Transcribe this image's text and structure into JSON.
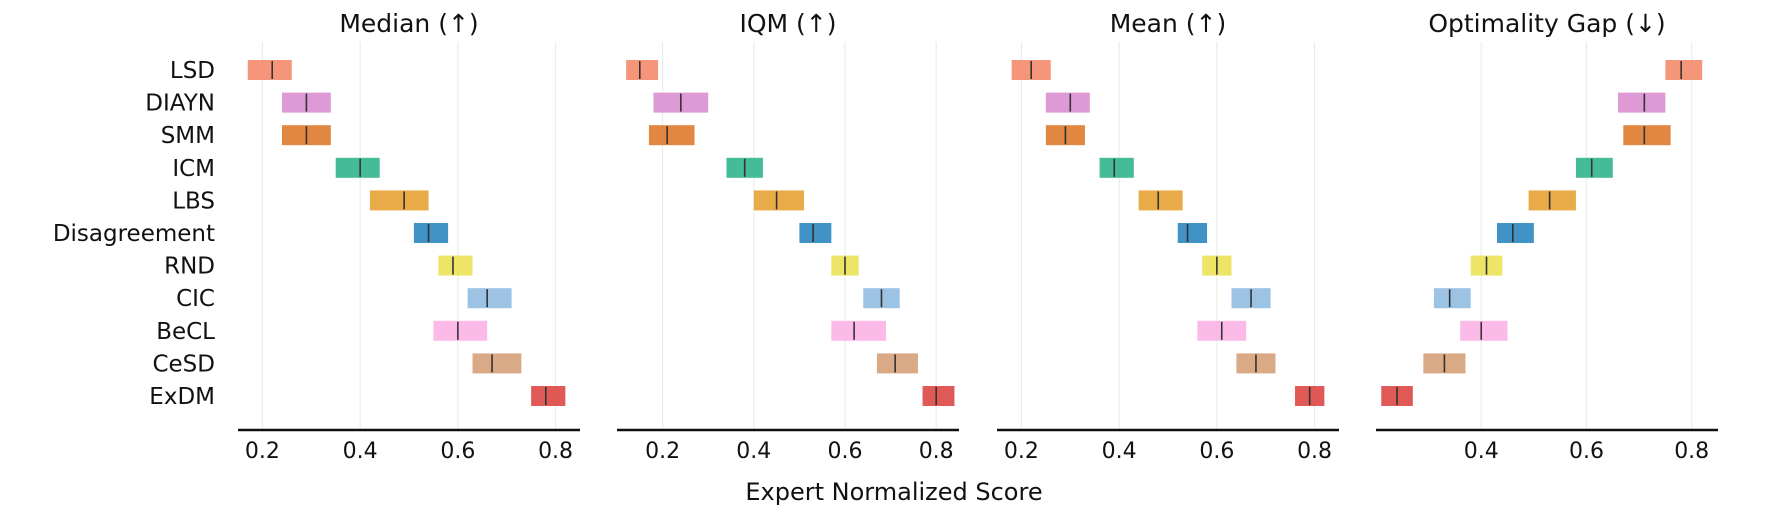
{
  "chart_data": {
    "type": "interval",
    "xlabel": "Expert Normalized Score",
    "categories": [
      "LSD",
      "DIAYN",
      "SMM",
      "ICM",
      "LBS",
      "Disagreement",
      "RND",
      "CIC",
      "BeCL",
      "CeSD",
      "ExDM"
    ],
    "colors": [
      "#f4896b",
      "#d98fcf",
      "#de7a2c",
      "#2fb58c",
      "#e5a233",
      "#2b86c1",
      "#ece155",
      "#91bde1",
      "#fbb2e6",
      "#d6a079",
      "#dc4744"
    ],
    "panels": [
      {
        "title": "Median (↑)",
        "xlim": [
          0.15,
          0.85
        ],
        "ticks": [
          0.2,
          0.4,
          0.6,
          0.8
        ],
        "tick_labels": [
          "0.2",
          "0.4",
          "0.6",
          "0.8"
        ],
        "intervals": [
          {
            "low": 0.17,
            "high": 0.26,
            "point": 0.22
          },
          {
            "low": 0.24,
            "high": 0.34,
            "point": 0.29
          },
          {
            "low": 0.24,
            "high": 0.34,
            "point": 0.29
          },
          {
            "low": 0.35,
            "high": 0.44,
            "point": 0.4
          },
          {
            "low": 0.42,
            "high": 0.54,
            "point": 0.49
          },
          {
            "low": 0.51,
            "high": 0.58,
            "point": 0.54
          },
          {
            "low": 0.56,
            "high": 0.63,
            "point": 0.59
          },
          {
            "low": 0.62,
            "high": 0.71,
            "point": 0.66
          },
          {
            "low": 0.55,
            "high": 0.66,
            "point": 0.6
          },
          {
            "low": 0.63,
            "high": 0.73,
            "point": 0.67
          },
          {
            "low": 0.75,
            "high": 0.82,
            "point": 0.78
          }
        ]
      },
      {
        "title": "IQM (↑)",
        "xlim": [
          0.1,
          0.85
        ],
        "ticks": [
          0.2,
          0.4,
          0.6,
          0.8
        ],
        "tick_labels": [
          "0.2",
          "0.4",
          "0.6",
          "0.8"
        ],
        "intervals": [
          {
            "low": 0.12,
            "high": 0.19,
            "point": 0.15
          },
          {
            "low": 0.18,
            "high": 0.3,
            "point": 0.24
          },
          {
            "low": 0.17,
            "high": 0.27,
            "point": 0.21
          },
          {
            "low": 0.34,
            "high": 0.42,
            "point": 0.38
          },
          {
            "low": 0.4,
            "high": 0.51,
            "point": 0.45
          },
          {
            "low": 0.5,
            "high": 0.57,
            "point": 0.53
          },
          {
            "low": 0.57,
            "high": 0.63,
            "point": 0.6
          },
          {
            "low": 0.64,
            "high": 0.72,
            "point": 0.68
          },
          {
            "low": 0.57,
            "high": 0.69,
            "point": 0.62
          },
          {
            "low": 0.67,
            "high": 0.76,
            "point": 0.71
          },
          {
            "low": 0.77,
            "high": 0.84,
            "point": 0.8
          }
        ]
      },
      {
        "title": "Mean (↑)",
        "xlim": [
          0.15,
          0.85
        ],
        "ticks": [
          0.2,
          0.4,
          0.6,
          0.8
        ],
        "tick_labels": [
          "0.2",
          "0.4",
          "0.6",
          "0.8"
        ],
        "intervals": [
          {
            "low": 0.18,
            "high": 0.26,
            "point": 0.22
          },
          {
            "low": 0.25,
            "high": 0.34,
            "point": 0.3
          },
          {
            "low": 0.25,
            "high": 0.33,
            "point": 0.29
          },
          {
            "low": 0.36,
            "high": 0.43,
            "point": 0.39
          },
          {
            "low": 0.44,
            "high": 0.53,
            "point": 0.48
          },
          {
            "low": 0.52,
            "high": 0.58,
            "point": 0.54
          },
          {
            "low": 0.57,
            "high": 0.63,
            "point": 0.6
          },
          {
            "low": 0.63,
            "high": 0.71,
            "point": 0.67
          },
          {
            "low": 0.56,
            "high": 0.66,
            "point": 0.61
          },
          {
            "low": 0.64,
            "high": 0.72,
            "point": 0.68
          },
          {
            "low": 0.76,
            "high": 0.82,
            "point": 0.79
          }
        ]
      },
      {
        "title": "Optimality Gap (↓)",
        "xlim": [
          0.2,
          0.85
        ],
        "ticks": [
          0.4,
          0.6,
          0.8
        ],
        "tick_labels": [
          "0.4",
          "0.6",
          "0.8"
        ],
        "intervals": [
          {
            "low": 0.75,
            "high": 0.82,
            "point": 0.78
          },
          {
            "low": 0.66,
            "high": 0.75,
            "point": 0.71
          },
          {
            "low": 0.67,
            "high": 0.76,
            "point": 0.71
          },
          {
            "low": 0.58,
            "high": 0.65,
            "point": 0.61
          },
          {
            "low": 0.49,
            "high": 0.58,
            "point": 0.53
          },
          {
            "low": 0.43,
            "high": 0.5,
            "point": 0.46
          },
          {
            "low": 0.38,
            "high": 0.44,
            "point": 0.41
          },
          {
            "low": 0.31,
            "high": 0.38,
            "point": 0.34
          },
          {
            "low": 0.36,
            "high": 0.45,
            "point": 0.4
          },
          {
            "low": 0.29,
            "high": 0.37,
            "point": 0.33
          },
          {
            "low": 0.21,
            "high": 0.27,
            "point": 0.24
          }
        ]
      }
    ]
  }
}
